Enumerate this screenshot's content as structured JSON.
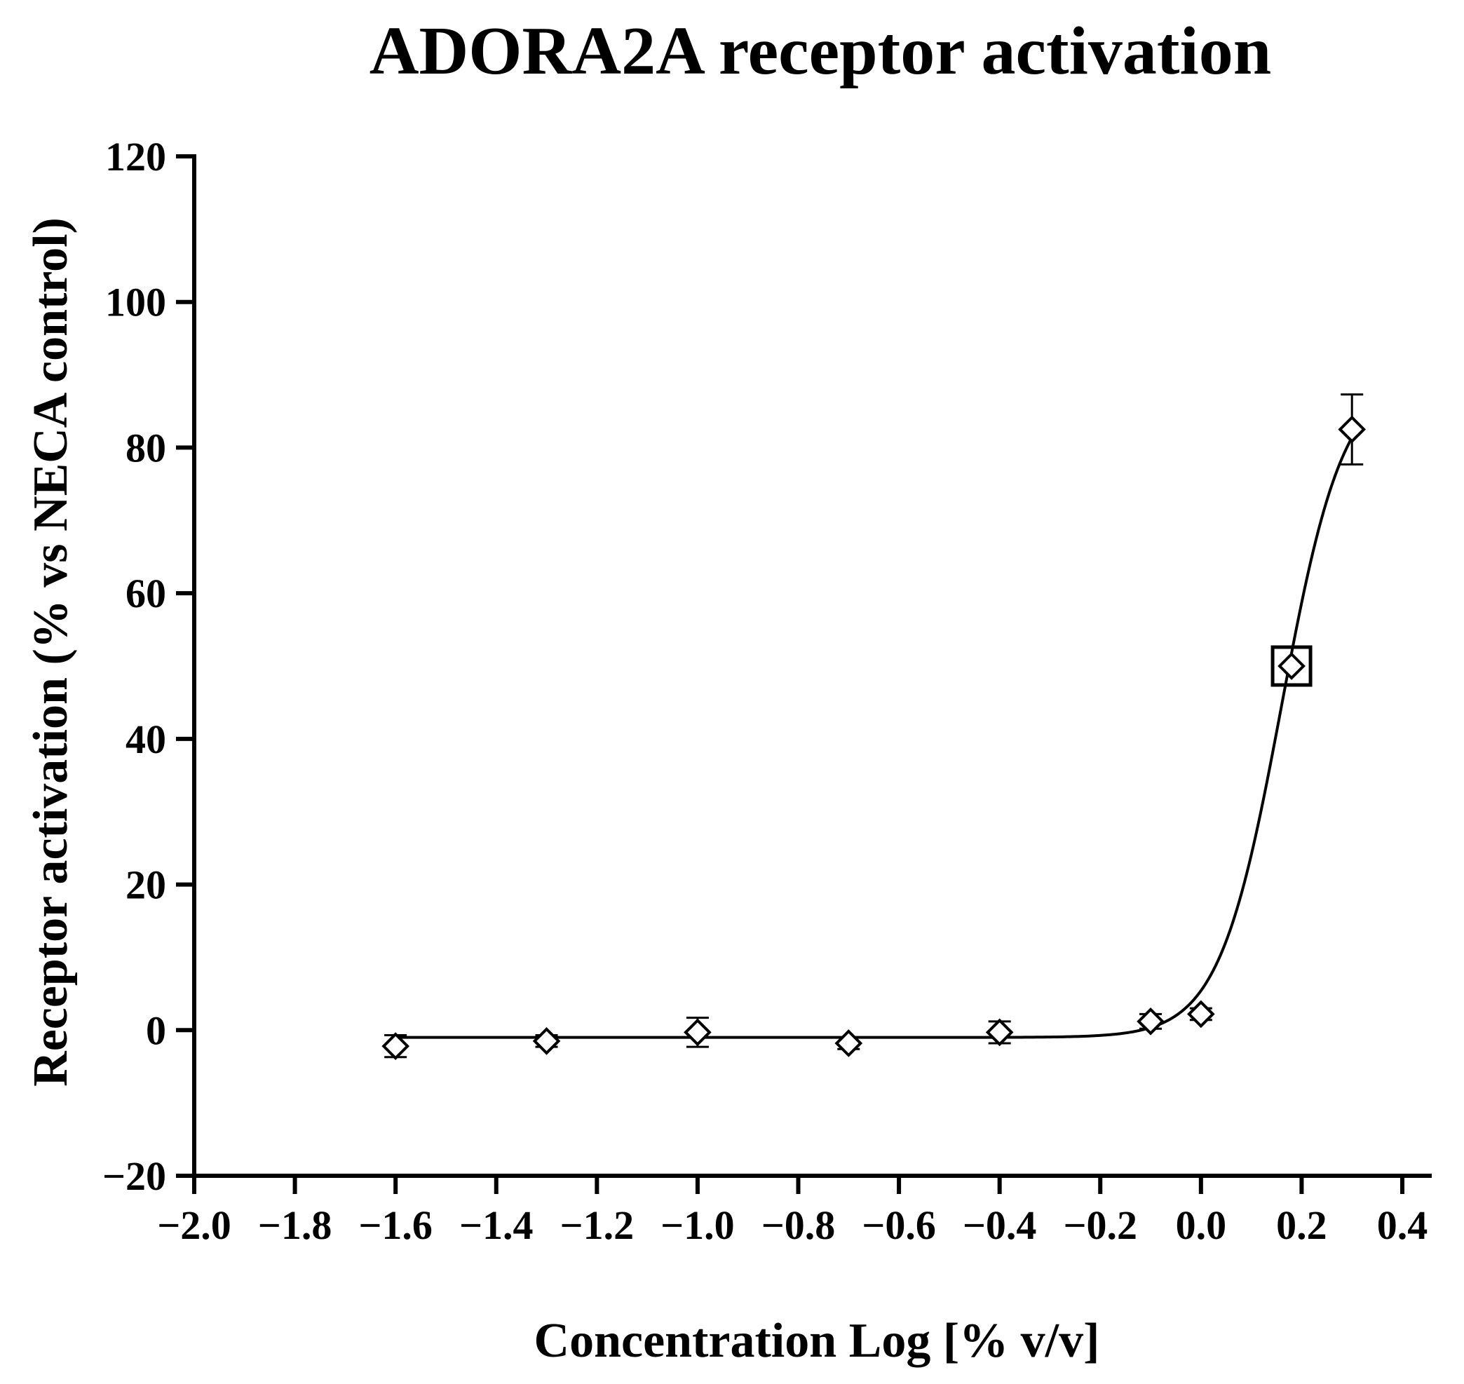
{
  "chart_data": {
    "type": "scatter",
    "title": "ADORA2A receptor activation",
    "xlabel": "Concentration Log [% v/v]",
    "ylabel": "Receptor activation (% vs NECA control)",
    "xlim": [
      -2.0,
      0.4
    ],
    "ylim": [
      -20,
      120
    ],
    "x_ticks": [
      -2.0,
      -1.8,
      -1.6,
      -1.4,
      -1.2,
      -1.0,
      -0.8,
      -0.6,
      -0.4,
      -0.2,
      0.0,
      0.2,
      0.4
    ],
    "x_tick_labels": [
      "−2.0",
      "−1.8",
      "−1.6",
      "−1.4",
      "−1.2",
      "−1.0",
      "−0.8",
      "−0.6",
      "−0.4",
      "−0.2",
      "0.0",
      "0.2",
      "0.4"
    ],
    "y_ticks": [
      -20,
      0,
      20,
      40,
      60,
      80,
      100,
      120
    ],
    "y_tick_labels": [
      "−20",
      "0",
      "20",
      "40",
      "60",
      "80",
      "100",
      "120"
    ],
    "grid": false,
    "marker": "diamond",
    "series": [
      {
        "points": [
          {
            "x": -1.6,
            "y": -2.2,
            "err": 1.5
          },
          {
            "x": -1.3,
            "y": -1.5,
            "err": 0.8
          },
          {
            "x": -1.0,
            "y": -0.3,
            "err": 2.0
          },
          {
            "x": -0.7,
            "y": -1.8,
            "err": 0.8
          },
          {
            "x": -0.4,
            "y": -0.3,
            "err": 1.5
          },
          {
            "x": -0.1,
            "y": 1.2,
            "err": 1.0
          },
          {
            "x": 0.0,
            "y": 2.2,
            "err": 0.8
          },
          {
            "x": 0.18,
            "y": 50.0,
            "err": 0.0
          },
          {
            "x": 0.3,
            "y": 82.5,
            "err": 4.8
          }
        ]
      }
    ],
    "fit": {
      "model": "sigmoidal dose-response",
      "bottom": -1.0,
      "top": 90,
      "log_ec50": 0.16,
      "hill_slope": 7.0
    },
    "highlighted_point": {
      "x": 0.18,
      "y": 50.0
    }
  }
}
